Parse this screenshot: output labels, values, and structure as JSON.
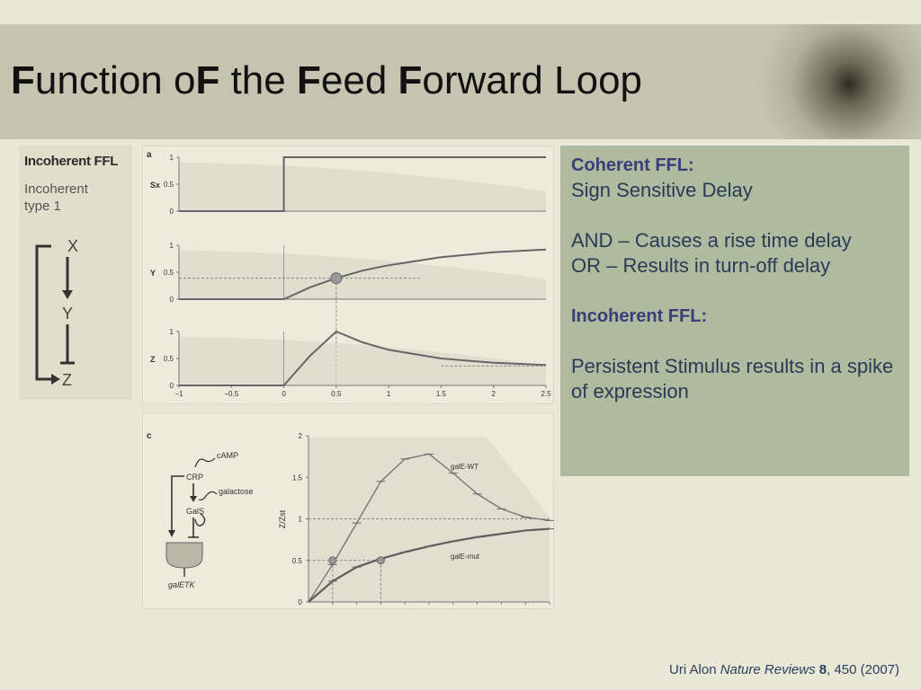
{
  "slide": {
    "title": {
      "b1": "F",
      "r1": "unction o",
      "b2": "F",
      "r2": " the ",
      "b3": "F",
      "r3": "eed ",
      "b4": "F",
      "r4": "orward Loop"
    },
    "ffl_diagram": {
      "title": "Incoherent FFL",
      "subtitle": "Incoherent type 1",
      "nodes": [
        "X",
        "Y",
        "Z"
      ]
    },
    "panel_a": {
      "label": "a",
      "plots": [
        {
          "ylabel": "Sx",
          "yticks": [
            "1",
            "0.5",
            "0"
          ]
        },
        {
          "ylabel": "Y",
          "yticks": [
            "1",
            "0.5",
            "0"
          ]
        },
        {
          "ylabel": "Z",
          "yticks": [
            "1",
            "0.5",
            "0"
          ]
        }
      ],
      "xticks": [
        "−1",
        "−0.5",
        "0",
        "0.5",
        "1",
        "1.5",
        "2",
        "2.5"
      ]
    },
    "panel_c": {
      "label": "c",
      "circuit": {
        "camp": "cAMP",
        "crp": "CRP",
        "galactose": "galactose",
        "gals": "GalS",
        "gene": "galETK"
      },
      "ylabel": "Z/Zst",
      "yticks": [
        "2",
        "1.5",
        "1",
        "0.5",
        "0"
      ],
      "curve_labels": {
        "wt": "galE-WT",
        "mut": "galE-mut"
      }
    },
    "textbox": {
      "coherent_heading": "Coherent FFL:",
      "coherent_line1": "Sign Sensitive Delay",
      "and_line": "AND – Causes a rise time delay",
      "or_line": "OR – Results in turn-off delay",
      "incoherent_heading": "Incoherent FFL:",
      "incoherent_line": "Persistent Stimulus results in a spike of expression"
    },
    "citation": {
      "author": "Uri Alon ",
      "journal": "Nature Reviews",
      "volume": " 8",
      "rest": ", 450 (2007)"
    },
    "colors": {
      "background": "#e9e8d6",
      "title_band": "#c5c4b0",
      "textbox": "#aebb9f",
      "heading": "#3b3d78",
      "body_text": "#2a3a56"
    }
  },
  "chart_data": [
    {
      "type": "line",
      "title": "",
      "xlabel": "",
      "ylabel": "Sx",
      "xlim": [
        -1,
        2.5
      ],
      "ylim": [
        0,
        1
      ],
      "series": [
        {
          "x": [
            -1,
            0,
            0,
            2.5
          ],
          "y": [
            0,
            0,
            1,
            1
          ]
        }
      ]
    },
    {
      "type": "line",
      "title": "",
      "xlabel": "",
      "ylabel": "Y",
      "xlim": [
        -1,
        2.5
      ],
      "ylim": [
        0,
        1
      ],
      "series": [
        {
          "x": [
            -1,
            0,
            0.25,
            0.5,
            0.75,
            1,
            1.5,
            2,
            2.5
          ],
          "y": [
            0,
            0,
            0.22,
            0.39,
            0.53,
            0.63,
            0.78,
            0.87,
            0.92
          ]
        }
      ],
      "annotations": [
        {
          "x": 0.5,
          "y": 0.39,
          "marker": "circle"
        }
      ]
    },
    {
      "type": "line",
      "title": "",
      "xlabel": "",
      "ylabel": "Z",
      "xlim": [
        -1,
        2.5
      ],
      "ylim": [
        0,
        1
      ],
      "series": [
        {
          "x": [
            -1,
            0,
            0.25,
            0.5,
            0.75,
            1,
            1.5,
            2,
            2.5
          ],
          "y": [
            0,
            0,
            0.55,
            1.0,
            0.8,
            0.66,
            0.5,
            0.42,
            0.38
          ]
        }
      ]
    },
    {
      "type": "line",
      "title": "",
      "xlabel": "",
      "ylabel": "Z/Zst",
      "ylim": [
        0,
        2
      ],
      "series": [
        {
          "name": "galE-WT",
          "x": [
            0,
            0.15,
            0.3,
            0.45,
            0.6,
            0.75,
            0.9,
            1.05,
            1.2,
            1.35,
            1.5
          ],
          "y": [
            0,
            0.45,
            0.95,
            1.45,
            1.72,
            1.78,
            1.55,
            1.3,
            1.12,
            1.02,
            0.98
          ]
        },
        {
          "name": "galE-mut",
          "x": [
            0,
            0.15,
            0.3,
            0.45,
            0.6,
            0.75,
            0.9,
            1.05,
            1.2,
            1.35,
            1.5
          ],
          "y": [
            0,
            0.25,
            0.42,
            0.52,
            0.6,
            0.67,
            0.73,
            0.78,
            0.82,
            0.86,
            0.88
          ]
        }
      ],
      "annotations": [
        {
          "y": 1,
          "style": "dashed"
        },
        {
          "y": 0.5,
          "style": "dashed"
        }
      ]
    }
  ]
}
